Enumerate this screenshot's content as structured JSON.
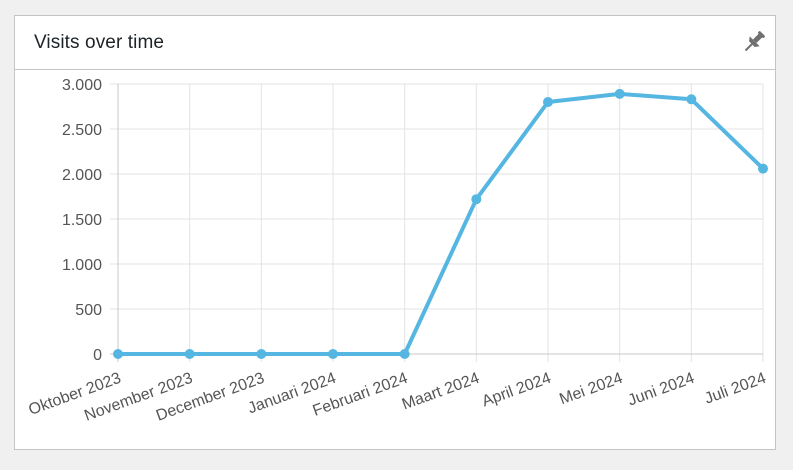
{
  "widget": {
    "title": "Visits over time",
    "pin_icon": "pin-icon"
  },
  "chart_data": {
    "type": "line",
    "title": "Visits over time",
    "xlabel": "",
    "ylabel": "",
    "categories": [
      "Oktober 2023",
      "November 2023",
      "December 2023",
      "Januari 2024",
      "Februari 2024",
      "Maart 2024",
      "April 2024",
      "Mei 2024",
      "Juni 2024",
      "Juli 2024"
    ],
    "series": [
      {
        "values": [
          0,
          0,
          0,
          0,
          0,
          1720,
          2800,
          2890,
          2830,
          2060
        ],
        "color": "#55b6e2"
      }
    ],
    "ylim": [
      0,
      3000
    ],
    "yticks": [
      0,
      500,
      1000,
      1500,
      2000,
      2500,
      3000
    ],
    "ytick_labels": [
      "0",
      "500",
      "1.000",
      "1.500",
      "2.000",
      "2.500",
      "3.000"
    ],
    "grid": true,
    "legend": "none"
  }
}
